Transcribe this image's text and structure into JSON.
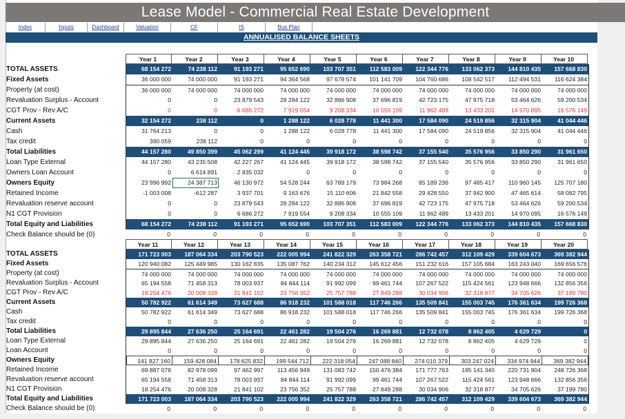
{
  "title": "Lease Model - Commercial Real Estate Development",
  "nav": [
    "Index",
    "Inputs",
    "Dashboard",
    "Valuation",
    "CF",
    "IS",
    "Bus Plan"
  ],
  "banner": "ANNUALISED BALANCE SHEETS",
  "colors": {
    "band": "#1f4e79",
    "negative_red": "#e0323a",
    "title_bar": "#7c7876"
  },
  "tables": [
    {
      "years": [
        "Year 1",
        "Year 2",
        "Year 3",
        "Year 4",
        "Year 5",
        "Year 6",
        "Year 7",
        "Year 8",
        "Year 9",
        "Year 10"
      ],
      "selected_cell": {
        "row": "Owners Equity",
        "col": "Year 2"
      },
      "rows": [
        {
          "label": "TOTAL ASSETS",
          "style": "band",
          "values": [
            "68 154 272",
            "74 238 112",
            "91 193 271",
            "95 652 690",
            "103 707 351",
            "112 583 009",
            "122 344 776",
            "133 062 373",
            "144 810 435",
            "157 668 830"
          ]
        },
        {
          "label": "Fixed Assets",
          "style": "bold",
          "values": [
            "36 000 000",
            "74 000 000",
            "91 193 271",
            "94 364 568",
            "97 678 574",
            "101 141 709",
            "104 760 686",
            "108 542 517",
            "112 494 531",
            "116 624 384"
          ]
        },
        {
          "label": "Property (at cost)",
          "style": "topline",
          "values": [
            "36 000 000",
            "74 000 000",
            "74 000 000",
            "74 000 000",
            "74 000 000",
            "74 000 000",
            "74 000 000",
            "74 000 000",
            "74 000 000",
            "74 000 000"
          ]
        },
        {
          "label": "Revaluation Surplus - Account",
          "style": "",
          "values": [
            "0",
            "0",
            "23 879 543",
            "28 284 122",
            "32 886 908",
            "37 696 819",
            "42 723 175",
            "47 975 718",
            "53 464 626",
            "59 200 534"
          ]
        },
        {
          "label": "CGT Prov - Rev A/C",
          "style": "red",
          "values": [
            "0",
            "0",
            "6 686 272",
            "7 919 554",
            "9 208 334",
            "10 555 109",
            "11 962 489",
            "13 433 201",
            "14 970 095",
            "16 576 149"
          ]
        },
        {
          "label": "Current Assets",
          "style": "band",
          "values": [
            "32 154 272",
            "238 112",
            "0",
            "1 288 122",
            "6 028 778",
            "11 441 300",
            "17 584 090",
            "24 519 856",
            "32 315 904",
            "41 044 446"
          ]
        },
        {
          "label": "Cash",
          "style": "",
          "values": [
            "31 764 213",
            "0",
            "0",
            "1 288 122",
            "6 028 778",
            "11 441 300",
            "17 584 090",
            "24 519 856",
            "32 315 904",
            "41 044 446"
          ]
        },
        {
          "label": "Tax credit",
          "style": "",
          "values": [
            "390 059",
            "238 112",
            "0",
            "0",
            "0",
            "0",
            "0",
            "0",
            "0",
            "0"
          ]
        },
        {
          "label": "Total Liabilities",
          "style": "band",
          "values": [
            "44 157 280",
            "49 850 399",
            "45 062 299",
            "41 124 445",
            "39 918 172",
            "38 598 742",
            "37 155 540",
            "35 576 956",
            "33 850 290",
            "31 961 650"
          ]
        },
        {
          "label": "Loan Type External",
          "style": "",
          "values": [
            "44 157 280",
            "43 235 508",
            "42 227 267",
            "41 124 445",
            "39 918 172",
            "38 598 742",
            "37 155 540",
            "35 576 956",
            "33 850 290",
            "31 961 650"
          ]
        },
        {
          "label": "Owners Loan Account",
          "style": "",
          "values": [
            "0",
            "6 614 891",
            "2 835 032",
            "0",
            "0",
            "0",
            "0",
            "0",
            "0",
            "0"
          ]
        },
        {
          "label": "Owners Equity",
          "style": "bold",
          "values": [
            "23 996 992",
            "24 387 713",
            "46 130 972",
            "54 528 244",
            "63 789 179",
            "73 984 268",
            "85 189 236",
            "97 485 417",
            "110 960 145",
            "125 707 180"
          ]
        },
        {
          "label": "Retained Income",
          "style": "",
          "values": [
            "-1 003 008",
            "-612 287",
            "3 937 701",
            "9 163 676",
            "15 110 606",
            "21 842 558",
            "29 428 550",
            "37 942 900",
            "47 465 614",
            "58 082 795"
          ]
        },
        {
          "label": "Revaluation reserve account",
          "style": "",
          "values": [
            "0",
            "0",
            "23 879 543",
            "28 284 122",
            "32 886 908",
            "37 696 819",
            "42 723 175",
            "47 975 718",
            "53 464 626",
            "59 200 534"
          ]
        },
        {
          "label": "N1 CGT Provision",
          "style": "",
          "values": [
            "0",
            "0",
            "6 686 272",
            "7 919 554",
            "9 208 334",
            "10 555 109",
            "11 962 489",
            "13 433 201",
            "14 970 095",
            "16 576 149"
          ]
        },
        {
          "label": "Total Equity and Liabilities",
          "style": "band",
          "values": [
            "68 154 272",
            "74 238 112",
            "91 193 271",
            "95 652 690",
            "103 707 351",
            "112 583 009",
            "122 344 776",
            "133 062 373",
            "144 810 435",
            "157 668 830"
          ]
        },
        {
          "label": "Check Balance should be (0)",
          "style": "plain",
          "values": [
            "0",
            "0",
            "0",
            "0",
            "0",
            "0",
            "0",
            "0",
            "0",
            "0"
          ]
        }
      ]
    },
    {
      "years": [
        "Year 11",
        "Year 12",
        "Year 13",
        "Year 14",
        "Year 15",
        "Year 16",
        "Year 17",
        "Year 18",
        "Year 19",
        "Year 20"
      ],
      "rows": [
        {
          "label": "TOTAL ASSETS",
          "style": "band",
          "values": [
            "171 723 003",
            "187 064 334",
            "203 790 523",
            "222 005 994",
            "241 822 329",
            "263 358 721",
            "286 742 457",
            "312 109 429",
            "339 604 673",
            "369 382 944"
          ]
        },
        {
          "label": "Fixed Assets",
          "style": "bold",
          "values": [
            "120 940 082",
            "125 449 985",
            "130 162 835",
            "135 087 762",
            "140 234 312",
            "145 612 456",
            "151 232 616",
            "157 105 684",
            "163 243 040",
            "169 656 576"
          ]
        },
        {
          "label": "Property (at cost)",
          "style": "topline",
          "values": [
            "74 000 000",
            "74 000 000",
            "74 000 000",
            "74 000 000",
            "74 000 000",
            "74 000 000",
            "74 000 000",
            "74 000 000",
            "74 000 000",
            "74 000 000"
          ]
        },
        {
          "label": "Revaluation Surplus - Account",
          "style": "",
          "values": [
            "65 194 558",
            "71 458 313",
            "78 003 937",
            "84 844 114",
            "91 992 099",
            "99 461 744",
            "107 267 522",
            "115 424 561",
            "123 948 666",
            "132 856 356"
          ]
        },
        {
          "label": "CGT Prov - Rev A/C",
          "style": "red",
          "values": [
            "18 254 476",
            "20 008 328",
            "21 841 102",
            "23 756 352",
            "25 757 788",
            "27 849 288",
            "30 034 906",
            "32 318 877",
            "34 705 626",
            "37 199 780"
          ]
        },
        {
          "label": "Current Assets",
          "style": "band",
          "values": [
            "50 782 922",
            "61 614 349",
            "73 627 688",
            "86 918 232",
            "101 588 018",
            "117 746 266",
            "135 509 841",
            "155 003 745",
            "176 361 634",
            "199 726 368"
          ]
        },
        {
          "label": "Cash",
          "style": "",
          "values": [
            "50 782 922",
            "61 614 349",
            "73 627 688",
            "86 918 232",
            "101 588 018",
            "117 746 266",
            "135 509 841",
            "155 003 745",
            "176 361 634",
            "199 726 368"
          ]
        },
        {
          "label": "Tax credit",
          "style": "",
          "values": [
            "0",
            "0",
            "0",
            "0",
            "0",
            "0",
            "0",
            "0",
            "0",
            "0"
          ]
        },
        {
          "label": "Total Liabilities",
          "style": "band",
          "values": [
            "29 895 844",
            "27 636 250",
            "25 164 691",
            "22 461 282",
            "19 504 276",
            "16 269 881",
            "12 732 078",
            "8 862 405",
            "4 629 729",
            "0"
          ]
        },
        {
          "label": "Loan Type External",
          "style": "",
          "values": [
            "29 895 844",
            "27 636 250",
            "25 164 691",
            "22 461 282",
            "19 504 276",
            "16 269 881",
            "12 732 078",
            "8 862 405",
            "4 629 729",
            "0"
          ]
        },
        {
          "label": "Loan Account",
          "style": "",
          "values": [
            "0",
            "0",
            "0",
            "0",
            "0",
            "0",
            "0",
            "0",
            "0",
            "0"
          ]
        },
        {
          "label": "Owners Equity",
          "style": "bold boxed",
          "values": [
            "141 827 160",
            "159 428 084",
            "178 625 832",
            "199 544 712",
            "222 318 054",
            "247 088 840",
            "274 010 379",
            "303 247 024",
            "334 974 944",
            "369 382 944"
          ]
        },
        {
          "label": "Retained Income",
          "style": "",
          "values": [
            "69 887 078",
            "82 978 099",
            "97 462 997",
            "113 456 949",
            "131 083 742",
            "150 476 384",
            "171 777 763",
            "195 141 340",
            "220 731 904",
            "248 726 368"
          ]
        },
        {
          "label": "Revaluation reserve account",
          "style": "",
          "values": [
            "65 194 558",
            "71 458 313",
            "78 003 937",
            "84 844 114",
            "91 992 099",
            "99 461 744",
            "107 267 522",
            "115 424 561",
            "123 948 666",
            "132 856 356"
          ]
        },
        {
          "label": "N1 CGT Provision",
          "style": "",
          "values": [
            "18 254 476",
            "20 008 328",
            "21 841 102",
            "23 756 352",
            "25 757 788",
            "27 849 288",
            "30 034 906",
            "32 318 877",
            "34 705 626",
            "37 199 780"
          ]
        },
        {
          "label": "Total Equity and Liabilities",
          "style": "band",
          "values": [
            "171 723 003",
            "187 064 334",
            "203 790 523",
            "222 005 994",
            "241 822 329",
            "263 358 721",
            "286 742 457",
            "312 109 429",
            "339 604 673",
            "369 382 944"
          ]
        },
        {
          "label": "Check Balance should be (0)",
          "style": "plain",
          "values": [
            "0",
            "0",
            "0",
            "0",
            "0",
            "0",
            "0",
            "0",
            "0",
            "0"
          ]
        }
      ]
    }
  ]
}
